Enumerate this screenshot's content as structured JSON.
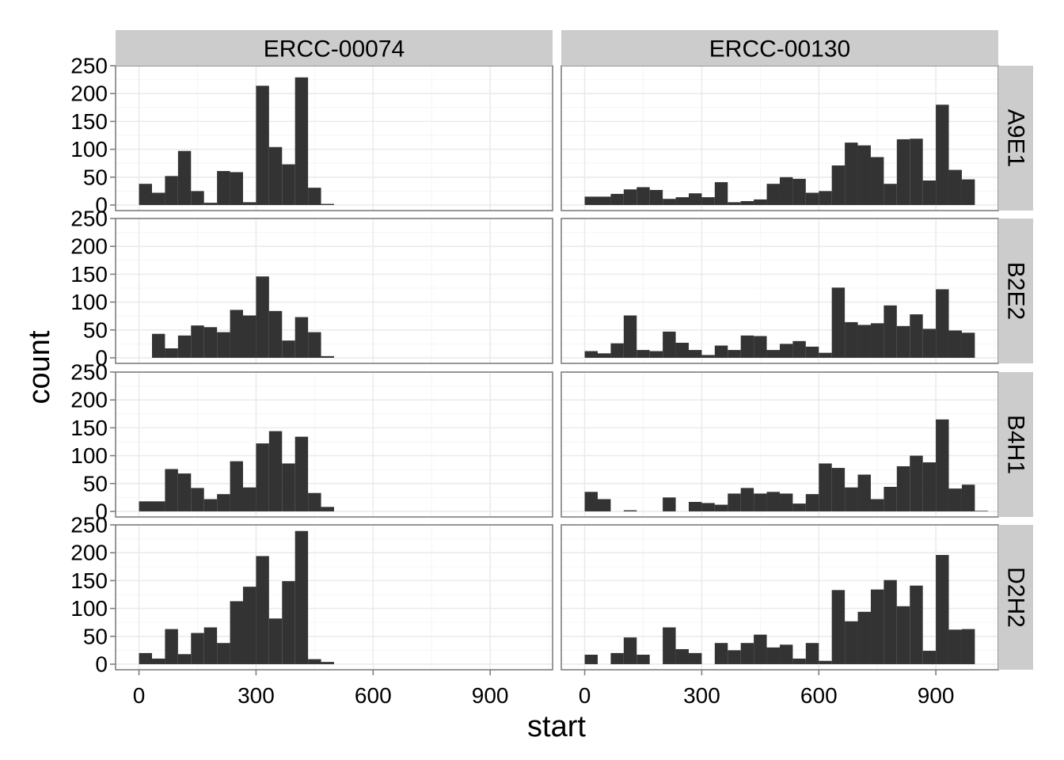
{
  "chart_data": {
    "type": "bar",
    "subtype": "faceted-histogram",
    "title": "",
    "xlabel": "start",
    "ylabel": "count",
    "xlim": [
      -60,
      1060
    ],
    "ylim": [
      -10,
      250
    ],
    "x_ticks": [
      0,
      300,
      600,
      900
    ],
    "y_ticks": [
      0,
      50,
      100,
      150,
      200,
      250
    ],
    "bin_width": 33.33,
    "bar_color": "#333333",
    "panel_background": "#ffffff",
    "grid": true,
    "grid_color": "#ebebeb",
    "strip_fill": "#cccccc",
    "columns": [
      "ERCC-00074",
      "ERCC-00130"
    ],
    "rows": [
      "A9E1",
      "B2E2",
      "B4H1",
      "D2H2"
    ],
    "panels": [
      {
        "row": "A9E1",
        "col": "ERCC-00074",
        "values": [
          38,
          22,
          52,
          97,
          25,
          4,
          61,
          59,
          5,
          214,
          104,
          73,
          229,
          31,
          2
        ]
      },
      {
        "row": "A9E1",
        "col": "ERCC-00130",
        "values": [
          15,
          15,
          20,
          28,
          32,
          27,
          11,
          14,
          21,
          14,
          41,
          5,
          7,
          10,
          38,
          50,
          47,
          22,
          25,
          71,
          112,
          107,
          86,
          38,
          118,
          119,
          44,
          180,
          63,
          46
        ]
      },
      {
        "row": "B2E2",
        "col": "ERCC-00074",
        "values": [
          0,
          43,
          17,
          40,
          58,
          55,
          46,
          86,
          76,
          146,
          84,
          31,
          73,
          46,
          3
        ]
      },
      {
        "row": "B2E2",
        "col": "ERCC-00130",
        "values": [
          12,
          8,
          26,
          76,
          14,
          12,
          47,
          27,
          14,
          5,
          22,
          14,
          40,
          39,
          14,
          25,
          30,
          20,
          9,
          126,
          64,
          59,
          62,
          94,
          57,
          78,
          52,
          123,
          49,
          45
        ]
      },
      {
        "row": "B4H1",
        "col": "ERCC-00074",
        "values": [
          18,
          18,
          76,
          68,
          42,
          22,
          31,
          90,
          43,
          122,
          144,
          86,
          134,
          33,
          8
        ]
      },
      {
        "row": "B4H1",
        "col": "ERCC-00130",
        "values": [
          35,
          22,
          0,
          2,
          0,
          0,
          25,
          0,
          17,
          15,
          12,
          32,
          42,
          32,
          35,
          32,
          14,
          31,
          86,
          78,
          43,
          66,
          22,
          44,
          81,
          100,
          88,
          165,
          41,
          48,
          1
        ]
      },
      {
        "row": "D2H2",
        "col": "ERCC-00074",
        "values": [
          20,
          10,
          63,
          18,
          56,
          66,
          38,
          113,
          139,
          194,
          82,
          149,
          239,
          9,
          4
        ]
      },
      {
        "row": "D2H2",
        "col": "ERCC-00130",
        "values": [
          17,
          0,
          20,
          48,
          17,
          0,
          66,
          27,
          20,
          0,
          38,
          25,
          38,
          53,
          30,
          35,
          10,
          38,
          6,
          133,
          77,
          94,
          134,
          151,
          104,
          141,
          24,
          196,
          62,
          63
        ]
      }
    ]
  }
}
